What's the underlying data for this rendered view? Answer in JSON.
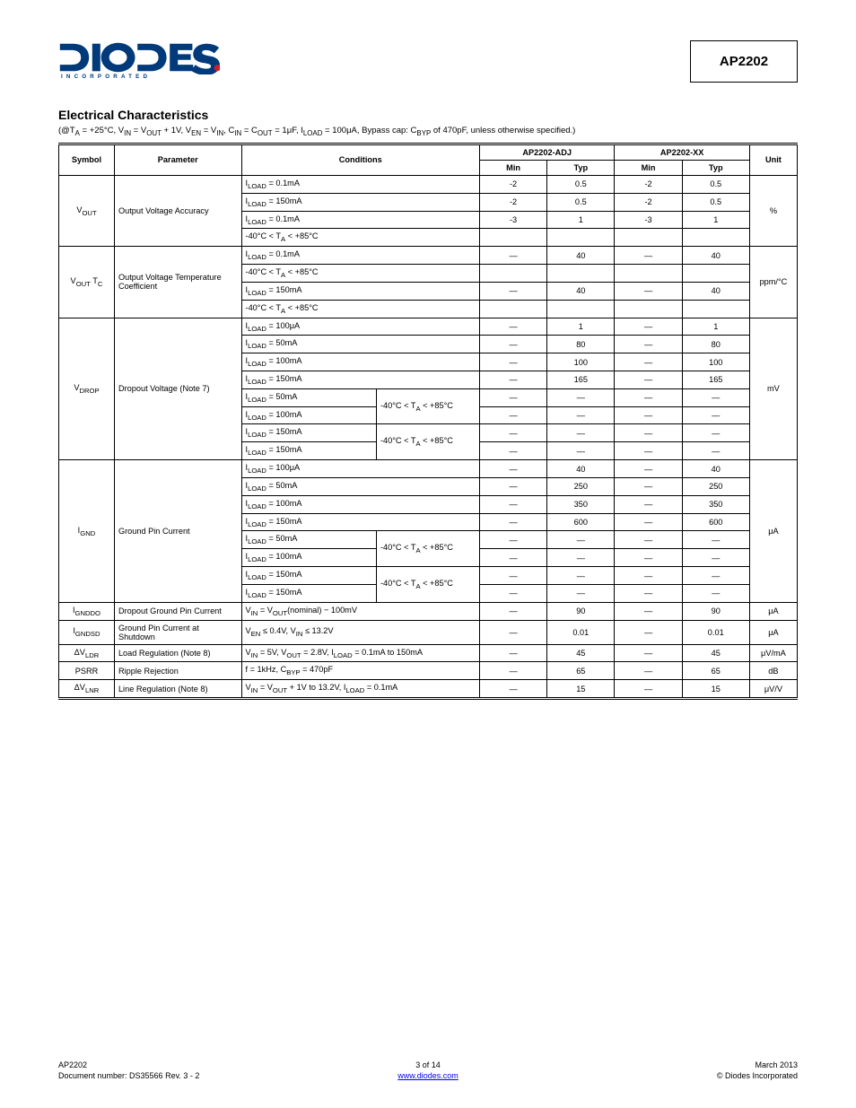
{
  "header": {
    "logo_sub": "INCORPORATED",
    "part_number": "AP2202",
    "logo_colors": {
      "primary": "#003a7a",
      "accent_dot": "#d21f26"
    }
  },
  "section": {
    "title": "Electrical Characteristics",
    "subtitle": "(@T<sub>A</sub> = +25°C, V<sub>IN</sub> = V<sub>OUT</sub> + 1V, V<sub>EN</sub> = V<sub>IN</sub>, C<sub>IN</sub> = C<sub>OUT</sub> = 1μF, I<sub>LOAD</sub> = 100μA, Bypass cap: C<sub>BYP</sub> of 470pF, unless otherwise specified.)"
  },
  "table": {
    "columns": [
      "Symbol",
      "Parameter",
      "Conditions 1",
      "Conditions 2",
      "Min",
      "Typ",
      "Min.2",
      "Typ.2",
      "Unit"
    ],
    "col_head_groups": {
      "adj_col": "AP2202-ADJ",
      "fix_col": "AP2202-XX",
      "min1": "Min",
      "typ1": "Typ",
      "min2": "Min",
      "typ2": "Typ"
    },
    "rows": [
      {
        "sym": "V<sub>OUT</sub>",
        "param": "Output Voltage Accuracy",
        "cond1": "I<sub>LOAD</sub> = 0.1mA",
        "cond2": "",
        "g1_min": "-2",
        "g1_typ": "0.5",
        "g2_min": "-2",
        "g2_typ": "0.5",
        "unit": "%",
        "rs": 4
      },
      {
        "sym": "",
        "param": "",
        "cond1": "I<sub>LOAD</sub> = 150mA",
        "cond2": "",
        "g1_min": "-2",
        "g1_typ": "0.5",
        "g2_min": "-2",
        "g2_typ": "0.5",
        "unit": "",
        "rs": 0
      },
      {
        "sym": "",
        "param": "",
        "cond1": "I<sub>LOAD</sub> = 0.1mA",
        "cond2": "",
        "g1_min": "-3",
        "g1_typ": "1",
        "g2_min": "-3",
        "g2_typ": "1",
        "unit": "",
        "rs": 0
      },
      {
        "sym": "",
        "param": "",
        "cond1": "-40°C < T<sub>A</sub> < +85°C",
        "cond2": "",
        "g1_min": "",
        "g1_typ": "",
        "g2_min": "",
        "g2_typ": "",
        "unit": "",
        "rs": 0
      },
      {
        "sym": "V<sub>OUT</sub> T<sub>C</sub>",
        "param": "Output Voltage Temperature Coefficient",
        "cond1": "I<sub>LOAD</sub> = 0.1mA",
        "cond2": "",
        "g1_min": "—",
        "g1_typ": "40",
        "g2_min": "—",
        "g2_typ": "40",
        "unit": "ppm/°C",
        "rs": 4
      },
      {
        "sym": "",
        "param": "",
        "cond1": "-40°C < T<sub>A</sub> < +85°C",
        "cond2": "",
        "g1_min": "",
        "g1_typ": "",
        "g2_min": "",
        "g2_typ": "",
        "unit": "",
        "rs": 0
      },
      {
        "sym": "",
        "param": "",
        "cond1": "I<sub>LOAD</sub> = 150mA",
        "cond2": "",
        "g1_min": "—",
        "g1_typ": "40",
        "g2_min": "—",
        "g2_typ": "40",
        "unit": "",
        "rs": 0
      },
      {
        "sym": "",
        "param": "",
        "cond1": "-40°C < T<sub>A</sub> < +85°C",
        "cond2": "",
        "g1_min": "",
        "g1_typ": "",
        "g2_min": "",
        "g2_typ": "",
        "unit": "",
        "rs": 0
      },
      {
        "sym": "V<sub>DROP</sub>",
        "param": "Dropout Voltage (Note 7)",
        "cond1": "I<sub>LOAD</sub> = 100μA",
        "cond2": "",
        "g1_min": "—",
        "g1_typ": "1",
        "g2_min": "—",
        "g2_typ": "1",
        "unit": "mV",
        "rs": 8
      },
      {
        "sym": "",
        "param": "",
        "cond1": "I<sub>LOAD</sub> = 50mA",
        "cond2": "",
        "g1_min": "—",
        "g1_typ": "80",
        "g2_min": "—",
        "g2_typ": "80",
        "unit": "",
        "rs": 0
      },
      {
        "sym": "",
        "param": "",
        "cond1": "I<sub>LOAD</sub> = 100mA",
        "cond2": "",
        "g1_min": "—",
        "g1_typ": "100",
        "g2_min": "—",
        "g2_typ": "100",
        "unit": "",
        "rs": 0
      },
      {
        "sym": "",
        "param": "",
        "cond1": "I<sub>LOAD</sub> = 150mA",
        "cond2": "",
        "g1_min": "—",
        "g1_typ": "165",
        "g2_min": "—",
        "g2_typ": "165",
        "unit": "",
        "rs": 0
      },
      {
        "sym": "",
        "param": "",
        "cond1": "I<sub>LOAD</sub> = 50mA",
        "cond2": "-40°C < T<sub>A</sub> < +85°C",
        "g1_min": "—",
        "g1_typ": "—",
        "g2_min": "—",
        "g2_typ": "—",
        "unit": "",
        "rs": 0,
        "cond2_rs": 2
      },
      {
        "sym": "",
        "param": "",
        "cond1": "I<sub>LOAD</sub> = 100mA",
        "cond2": "",
        "g1_min": "—",
        "g1_typ": "—",
        "g2_min": "—",
        "g2_typ": "—",
        "unit": "",
        "rs": 0
      },
      {
        "sym": "",
        "param": "",
        "cond1": "I<sub>LOAD</sub> = 150mA",
        "cond2": "-40°C < T<sub>A</sub> < +85°C",
        "g1_min": "—",
        "g1_typ": "—",
        "g2_min": "—",
        "g2_typ": "—",
        "unit": "",
        "rs": 0,
        "cond2_rs": 2
      },
      {
        "sym": "",
        "param": "",
        "cond1": "I<sub>LOAD</sub> = 150mA",
        "cond2": "",
        "g1_min": "—",
        "g1_typ": "—",
        "g2_min": "—",
        "g2_typ": "—",
        "unit": "",
        "rs": 0
      },
      {
        "sym": "I<sub>GND</sub>",
        "param": "Ground Pin Current",
        "cond1": "I<sub>LOAD</sub> = 100μA",
        "cond2": "",
        "g1_min": "—",
        "g1_typ": "40",
        "g2_min": "—",
        "g2_typ": "40",
        "unit": "μA",
        "rs": 8
      },
      {
        "sym": "",
        "param": "",
        "cond1": "I<sub>LOAD</sub> = 50mA",
        "cond2": "",
        "g1_min": "—",
        "g1_typ": "250",
        "g2_min": "—",
        "g2_typ": "250",
        "unit": "",
        "rs": 0
      },
      {
        "sym": "",
        "param": "",
        "cond1": "I<sub>LOAD</sub> = 100mA",
        "cond2": "",
        "g1_min": "—",
        "g1_typ": "350",
        "g2_min": "—",
        "g2_typ": "350",
        "unit": "",
        "rs": 0
      },
      {
        "sym": "",
        "param": "",
        "cond1": "I<sub>LOAD</sub> = 150mA",
        "cond2": "",
        "g1_min": "—",
        "g1_typ": "600",
        "g2_min": "—",
        "g2_typ": "600",
        "unit": "",
        "rs": 0
      },
      {
        "sym": "",
        "param": "",
        "cond1": "I<sub>LOAD</sub> = 50mA",
        "cond2": "-40°C < T<sub>A</sub> < +85°C",
        "g1_min": "—",
        "g1_typ": "—",
        "g2_min": "—",
        "g2_typ": "—",
        "unit": "",
        "rs": 0,
        "cond2_rs": 2
      },
      {
        "sym": "",
        "param": "",
        "cond1": "I<sub>LOAD</sub> = 100mA",
        "cond2": "",
        "g1_min": "—",
        "g1_typ": "—",
        "g2_min": "—",
        "g2_typ": "—",
        "unit": "",
        "rs": 0
      },
      {
        "sym": "",
        "param": "",
        "cond1": "I<sub>LOAD</sub> = 150mA",
        "cond2": "-40°C < T<sub>A</sub> < +85°C",
        "g1_min": "—",
        "g1_typ": "—",
        "g2_min": "—",
        "g2_typ": "—",
        "unit": "",
        "rs": 0,
        "cond2_rs": 2
      },
      {
        "sym": "",
        "param": "",
        "cond1": "I<sub>LOAD</sub> = 150mA",
        "cond2": "",
        "g1_min": "—",
        "g1_typ": "—",
        "g2_min": "—",
        "g2_typ": "—",
        "unit": "",
        "rs": 0
      },
      {
        "sym": "I<sub>GNDDO</sub>",
        "param": "Dropout Ground Pin Current",
        "cond1": "V<sub>IN</sub> = V<sub>OUT</sub>(nominal) − 100mV",
        "cond2": "",
        "g1_min": "—",
        "g1_typ": "90",
        "g2_min": "—",
        "g2_typ": "90",
        "unit": "μA",
        "rs": 1
      },
      {
        "sym": "I<sub>GNDSD</sub>",
        "param": "Ground Pin Current at Shutdown",
        "cond1": "V<sub>EN</sub> ≤ 0.4V, V<sub>IN</sub> ≤ 13.2V",
        "cond2": "",
        "g1_min": "—",
        "g1_typ": "0.01",
        "g2_min": "—",
        "g2_typ": "0.01",
        "unit": "μA",
        "rs": 1
      },
      {
        "sym": "ΔV<sub>LDR</sub>",
        "param": "Load Regulation (Note 8)",
        "cond1": "V<sub>IN</sub> = 5V, V<sub>OUT</sub> = 2.8V, I<sub>LOAD</sub> = 0.1mA to 150mA",
        "cond2": "",
        "g1_min": "—",
        "g1_typ": "45",
        "g2_min": "—",
        "g2_typ": "45",
        "unit": "μV/mA",
        "rs": 1
      },
      {
        "sym": "PSRR",
        "param": "Ripple Rejection",
        "cond1": "f = 1kHz, C<sub>BYP</sub> = 470pF",
        "cond2": "",
        "g1_min": "—",
        "g1_typ": "65",
        "g2_min": "—",
        "g2_typ": "65",
        "unit": "dB",
        "rs": 1
      },
      {
        "sym": "ΔV<sub>LNR</sub>",
        "param": "Line Regulation (Note 8)",
        "cond1": "V<sub>IN</sub> = V<sub>OUT</sub> + 1V to 13.2V, I<sub>LOAD</sub> = 0.1mA",
        "cond2": "",
        "g1_min": "—",
        "g1_typ": "15",
        "g2_min": "—",
        "g2_typ": "15",
        "unit": "μV/V",
        "rs": 1
      }
    ]
  },
  "footer": {
    "left_line1": "AP2202",
    "left_line2": "Document number: DS35566 Rev. 3 - 2",
    "center_line1": "3 of 14",
    "center_line2": "www.diodes.com",
    "right_line1": "March 2013",
    "right_line2": "© Diodes Incorporated"
  }
}
